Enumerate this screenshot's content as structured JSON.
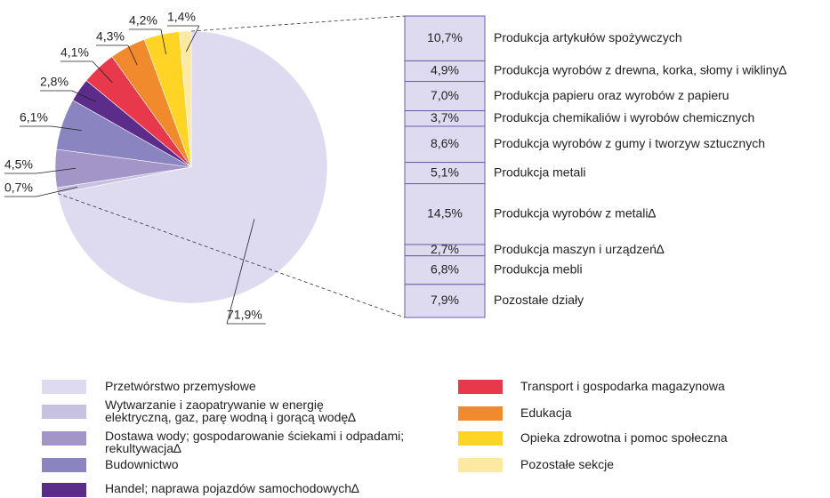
{
  "chart_data": [
    {
      "type": "pie",
      "categories": [
        "Przetwórstwo przemysłowe",
        "Wytwarzanie i zaopatrywanie w energię elektryczną, gaz, parę wodną i gorącą wodę∆",
        "Dostawa wody; gospodarowanie ściekami i odpadami; rekultywacja∆",
        "Budownictwo",
        "Handel; naprawa pojazdów samochodowych∆",
        "Transport i gospodarka magazynowa",
        "Edukacja",
        "Opieka zdrowotna i pomoc społeczna",
        "Pozostałe sekcje"
      ],
      "values": [
        71.9,
        0.7,
        4.5,
        6.1,
        2.8,
        4.1,
        4.3,
        4.2,
        1.4
      ],
      "value_labels": [
        "71,9%",
        "0,7%",
        "4,5%",
        "6,1%",
        "2,8%",
        "4,1%",
        "4,3%",
        "4,2%",
        "1,4%"
      ],
      "colors": [
        "#dedbf0",
        "#c8c2e2",
        "#a495c9",
        "#8a84c0",
        "#5b2c8a",
        "#e8384c",
        "#f08a2c",
        "#ffd425",
        "#fdeaa2"
      ]
    },
    {
      "type": "bar",
      "categories": [
        "Produkcja artykułów spożywczych",
        "Produkcja wyrobów z drewna, korka, słomy i wikliny∆",
        "Produkcja papieru oraz wyrobów z papieru",
        "Produkcja chemikaliów i wyrobów chemicznych",
        "Produkcja wyrobów z gumy i tworzyw sztucznych",
        "Produkcja metali",
        "Produkcja wyrobów z metali∆",
        "Produkcja maszyn i urządzeń∆",
        "Produkcja mebli",
        "Pozostałe działy"
      ],
      "values": [
        10.7,
        4.9,
        7.0,
        3.7,
        8.6,
        5.1,
        14.5,
        2.7,
        6.8,
        7.9
      ],
      "value_labels": [
        "10,7%",
        "4,9%",
        "7,0%",
        "3,7%",
        "8,6%",
        "5,1%",
        "14,5%",
        "2,7%",
        "6,8%",
        "7,9%"
      ],
      "color": "#dedbf0"
    }
  ]
}
